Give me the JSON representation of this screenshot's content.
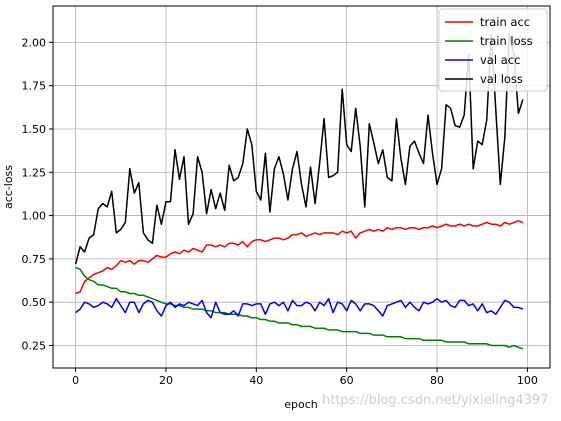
{
  "chart_data": {
    "type": "line",
    "xlabel": "epoch",
    "ylabel": "acc-loss",
    "xlim": [
      -5,
      105
    ],
    "ylim": [
      0.12,
      2.21
    ],
    "xticks": [
      0,
      20,
      40,
      60,
      80,
      100
    ],
    "yticks": [
      0.25,
      0.5,
      0.75,
      1.0,
      1.25,
      1.5,
      1.75,
      2.0
    ],
    "grid": true,
    "legend_position": "top-right",
    "series": [
      {
        "name": "train acc",
        "color": "#ff0000",
        "values": [
          0.55,
          0.56,
          0.62,
          0.64,
          0.66,
          0.67,
          0.68,
          0.7,
          0.69,
          0.71,
          0.74,
          0.73,
          0.74,
          0.72,
          0.74,
          0.74,
          0.73,
          0.75,
          0.77,
          0.76,
          0.76,
          0.78,
          0.79,
          0.78,
          0.8,
          0.79,
          0.81,
          0.8,
          0.79,
          0.83,
          0.83,
          0.82,
          0.83,
          0.82,
          0.84,
          0.84,
          0.83,
          0.85,
          0.82,
          0.85,
          0.86,
          0.86,
          0.85,
          0.86,
          0.87,
          0.87,
          0.86,
          0.87,
          0.89,
          0.89,
          0.9,
          0.88,
          0.89,
          0.9,
          0.89,
          0.9,
          0.9,
          0.9,
          0.89,
          0.91,
          0.9,
          0.91,
          0.87,
          0.9,
          0.91,
          0.92,
          0.91,
          0.92,
          0.91,
          0.93,
          0.92,
          0.93,
          0.93,
          0.92,
          0.93,
          0.93,
          0.92,
          0.93,
          0.93,
          0.94,
          0.93,
          0.94,
          0.95,
          0.94,
          0.94,
          0.95,
          0.94,
          0.95,
          0.94,
          0.94,
          0.95,
          0.96,
          0.95,
          0.95,
          0.94,
          0.96,
          0.95,
          0.96,
          0.97,
          0.96
        ]
      },
      {
        "name": "train loss",
        "color": "#008000",
        "values": [
          0.7,
          0.69,
          0.65,
          0.63,
          0.62,
          0.6,
          0.6,
          0.59,
          0.58,
          0.58,
          0.56,
          0.56,
          0.55,
          0.55,
          0.54,
          0.54,
          0.53,
          0.52,
          0.51,
          0.5,
          0.49,
          0.49,
          0.48,
          0.48,
          0.47,
          0.47,
          0.46,
          0.46,
          0.46,
          0.45,
          0.45,
          0.44,
          0.44,
          0.44,
          0.43,
          0.43,
          0.43,
          0.42,
          0.42,
          0.41,
          0.41,
          0.4,
          0.4,
          0.39,
          0.39,
          0.38,
          0.38,
          0.38,
          0.37,
          0.37,
          0.36,
          0.36,
          0.36,
          0.35,
          0.35,
          0.35,
          0.34,
          0.34,
          0.34,
          0.33,
          0.33,
          0.33,
          0.33,
          0.32,
          0.32,
          0.32,
          0.31,
          0.31,
          0.31,
          0.3,
          0.3,
          0.3,
          0.3,
          0.29,
          0.29,
          0.29,
          0.29,
          0.28,
          0.28,
          0.28,
          0.28,
          0.28,
          0.27,
          0.27,
          0.27,
          0.27,
          0.27,
          0.26,
          0.26,
          0.26,
          0.26,
          0.26,
          0.25,
          0.25,
          0.25,
          0.25,
          0.24,
          0.25,
          0.24,
          0.23
        ]
      },
      {
        "name": "val acc",
        "color": "#0000ff",
        "values": [
          0.44,
          0.46,
          0.5,
          0.49,
          0.47,
          0.48,
          0.5,
          0.49,
          0.47,
          0.52,
          0.48,
          0.44,
          0.5,
          0.5,
          0.44,
          0.49,
          0.51,
          0.5,
          0.45,
          0.42,
          0.48,
          0.5,
          0.47,
          0.49,
          0.48,
          0.5,
          0.49,
          0.48,
          0.51,
          0.44,
          0.41,
          0.5,
          0.44,
          0.43,
          0.43,
          0.45,
          0.42,
          0.49,
          0.49,
          0.48,
          0.49,
          0.49,
          0.43,
          0.49,
          0.5,
          0.48,
          0.5,
          0.45,
          0.51,
          0.48,
          0.48,
          0.5,
          0.49,
          0.45,
          0.5,
          0.48,
          0.52,
          0.44,
          0.5,
          0.49,
          0.45,
          0.51,
          0.49,
          0.45,
          0.49,
          0.49,
          0.48,
          0.45,
          0.42,
          0.48,
          0.49,
          0.5,
          0.51,
          0.47,
          0.5,
          0.47,
          0.45,
          0.5,
          0.49,
          0.5,
          0.52,
          0.5,
          0.51,
          0.48,
          0.47,
          0.51,
          0.51,
          0.48,
          0.49,
          0.45,
          0.49,
          0.44,
          0.45,
          0.43,
          0.47,
          0.51,
          0.5,
          0.47,
          0.47,
          0.46
        ]
      },
      {
        "name": "val loss",
        "color": "#000000",
        "values": [
          0.72,
          0.82,
          0.79,
          0.87,
          0.89,
          1.04,
          1.07,
          1.05,
          1.14,
          0.9,
          0.92,
          0.96,
          1.27,
          1.13,
          1.19,
          0.9,
          0.86,
          0.84,
          1.06,
          0.95,
          1.08,
          1.08,
          1.38,
          1.21,
          1.34,
          0.95,
          1.01,
          1.34,
          1.25,
          1.01,
          1.15,
          1.04,
          1.13,
          1.03,
          1.29,
          1.2,
          1.22,
          1.3,
          1.5,
          1.41,
          1.14,
          1.09,
          1.36,
          1.02,
          1.27,
          1.34,
          1.24,
          1.09,
          1.27,
          1.37,
          1.18,
          1.05,
          1.28,
          1.07,
          1.3,
          1.56,
          1.22,
          1.23,
          1.25,
          1.73,
          1.41,
          1.37,
          1.62,
          1.4,
          1.05,
          1.53,
          1.42,
          1.3,
          1.38,
          1.22,
          1.2,
          1.56,
          1.33,
          1.18,
          1.4,
          1.43,
          1.36,
          1.3,
          1.58,
          1.36,
          1.18,
          1.27,
          1.64,
          1.62,
          1.52,
          1.51,
          1.58,
          1.93,
          1.27,
          1.43,
          1.41,
          1.55,
          2.05,
          1.61,
          1.18,
          1.45,
          2.05,
          1.93,
          1.59,
          1.67
        ]
      }
    ]
  },
  "watermark": "https://blog.csdn.net/yixieling4397"
}
